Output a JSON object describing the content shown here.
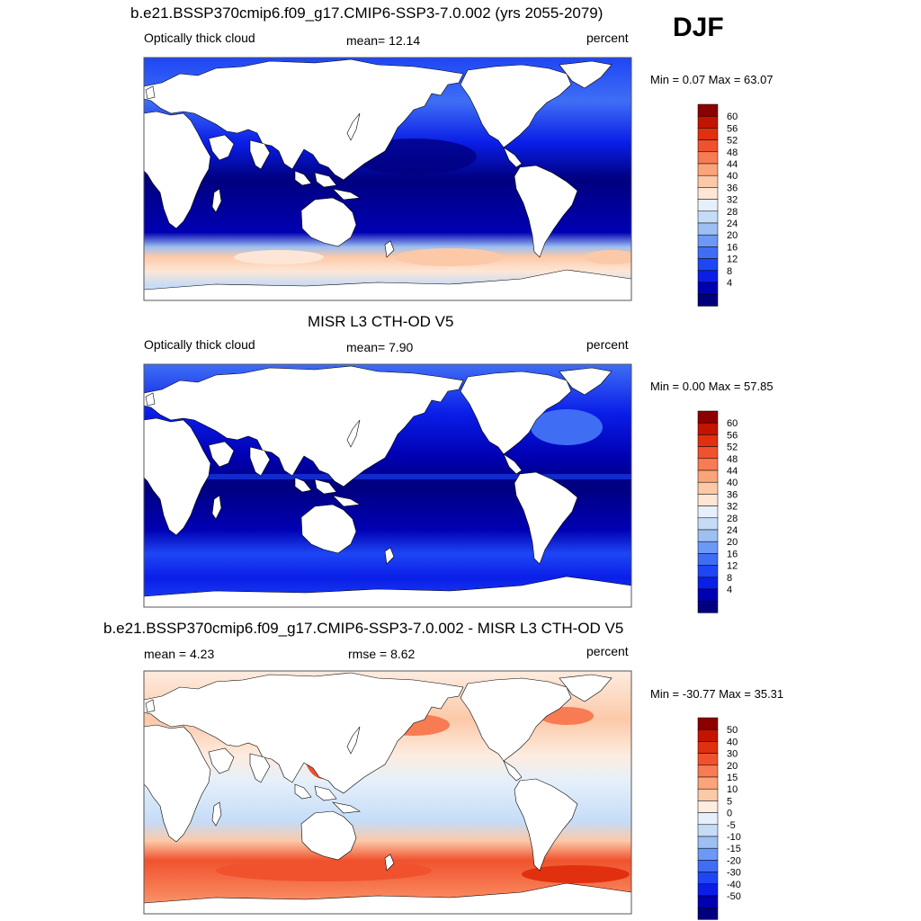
{
  "season": "DJF",
  "colors": {
    "model_obs_scale": [
      "#00007f",
      "#0000b3",
      "#0a1ee8",
      "#1e46f5",
      "#3f6ef5",
      "#6c99f5",
      "#9dbff2",
      "#c5dcf7",
      "#e6f0fa",
      "#fde6d6",
      "#fcc9a8",
      "#fba47a",
      "#f77c53",
      "#f0522e",
      "#e0300f",
      "#c31400",
      "#8c0000"
    ],
    "diff_scale": [
      "#00007f",
      "#0000b3",
      "#0a1ee8",
      "#1e46f5",
      "#3f6ef5",
      "#6c99f5",
      "#9dbff2",
      "#c5dcf7",
      "#e6f0fa",
      "#fdece0",
      "#fcc9a8",
      "#fba47a",
      "#f77c53",
      "#f0522e",
      "#e0300f",
      "#c31400",
      "#8c0000"
    ],
    "land": "#ffffff"
  },
  "panels": [
    {
      "title": "b.e21.BSSP370cmip6.f09_g17.CMIP6-SSP3-7.0.002 (yrs 2055-2079)",
      "left_label": "Optically thick cloud",
      "center_label": "mean=  12.14",
      "right_label": "percent",
      "minmax": "Min =   0.07 Max =  63.07",
      "colorbar_ticks": [
        "60",
        "56",
        "52",
        "48",
        "44",
        "40",
        "36",
        "32",
        "28",
        "24",
        "20",
        "16",
        "12",
        "8",
        "4"
      ]
    },
    {
      "title": "MISR L3 CTH-OD V5",
      "left_label": "Optically thick cloud",
      "center_label": "mean=   7.90",
      "right_label": "percent",
      "minmax": "Min =   0.00 Max =  57.85",
      "colorbar_ticks": [
        "60",
        "56",
        "52",
        "48",
        "44",
        "40",
        "36",
        "32",
        "28",
        "24",
        "20",
        "16",
        "12",
        "8",
        "4"
      ]
    },
    {
      "title": "b.e21.BSSP370cmip6.f09_g17.CMIP6-SSP3-7.0.002 - MISR L3 CTH-OD V5",
      "left_label": "mean =   4.23",
      "center_label": "rmse =   8.62",
      "right_label": "percent",
      "minmax": "Min = -30.77 Max =  35.31",
      "colorbar_ticks": [
        "50",
        "40",
        "30",
        "20",
        "15",
        "10",
        "5",
        "0",
        "-5",
        "-10",
        "-15",
        "-20",
        "-30",
        "-40",
        "-50"
      ]
    }
  ]
}
